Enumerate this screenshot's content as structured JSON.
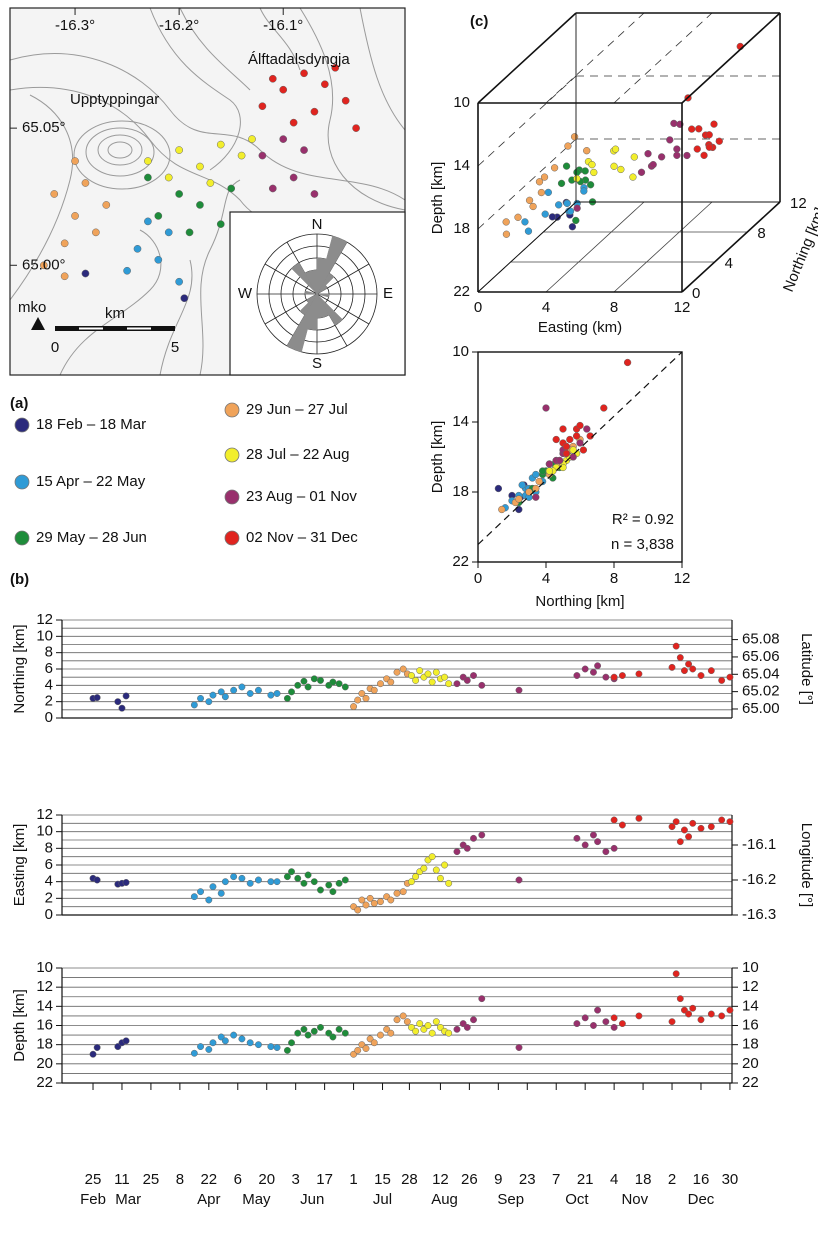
{
  "panel_labels": [
    "(a)",
    "(b)",
    "(c)"
  ],
  "chart_data": [
    {
      "type": "map",
      "xlim": [
        -16.3625,
        -15.983
      ],
      "ylim": [
        64.96,
        65.0938
      ],
      "xticks": [
        {
          "value": -16.3,
          "label": "-16.3°"
        },
        {
          "value": -16.2,
          "label": "-16.2°"
        },
        {
          "value": -16.1,
          "label": "-16.1°"
        }
      ],
      "yticks": [
        {
          "value": 65.0,
          "label": "65.00°"
        },
        {
          "value": 65.05,
          "label": "65.05°"
        }
      ],
      "place_labels": [
        "Álftadalsdyngja",
        "Upptyppingar"
      ],
      "station": "mko",
      "scale_bar": {
        "unit": "km",
        "ticks": [
          0,
          5
        ]
      },
      "rose": {
        "labels": [
          "N",
          "E",
          "S",
          "W"
        ],
        "rlim": [
          0,
          5
        ],
        "angles": [
          7.5,
          22.5,
          37.5,
          52.5,
          97.5,
          142.5,
          157.5,
          172.5,
          187.5,
          202.5,
          217.5,
          232.5,
          277.5,
          322.5,
          337.5,
          352.5
        ],
        "values": [
          3,
          5,
          2,
          1,
          1,
          3,
          2,
          2,
          3,
          5,
          2,
          1,
          1,
          3,
          2,
          2
        ]
      },
      "series": [
        {
          "name": "18 Feb – 18 Mar",
          "color": "#2b2a7c",
          "x": [
            -16.29,
            -16.195
          ],
          "y": [
            64.997,
            64.988
          ]
        },
        {
          "name": "15 Apr – 22 May",
          "color": "#2f9bd6",
          "x": [
            -16.25,
            -16.24,
            -16.22,
            -16.21,
            -16.23,
            -16.2
          ],
          "y": [
            64.998,
            65.006,
            65.002,
            65.012,
            65.016,
            64.994
          ]
        },
        {
          "name": "29 May – 28 Jun",
          "color": "#1e8c3a",
          "x": [
            -16.22,
            -16.2,
            -16.18,
            -16.16,
            -16.19,
            -16.15,
            -16.23
          ],
          "y": [
            65.018,
            65.026,
            65.022,
            65.015,
            65.012,
            65.028,
            65.032
          ]
        },
        {
          "name": "29 Jun – 27 Jul",
          "color": "#f0a35a",
          "x": [
            -16.33,
            -16.31,
            -16.3,
            -16.28,
            -16.32,
            -16.29,
            -16.27,
            -16.3,
            -16.31
          ],
          "y": [
            65.0,
            65.008,
            65.018,
            65.012,
            65.026,
            65.03,
            65.022,
            65.038,
            64.996
          ]
        },
        {
          "name": "28 Jul – 22 Aug",
          "color": "#f2ee2c",
          "x": [
            -16.23,
            -16.2,
            -16.18,
            -16.16,
            -16.14,
            -16.21,
            -16.17,
            -16.13
          ],
          "y": [
            65.038,
            65.042,
            65.036,
            65.044,
            65.04,
            65.032,
            65.03,
            65.046
          ]
        },
        {
          "name": "23 Aug – 01 Nov",
          "color": "#98306c",
          "x": [
            -16.12,
            -16.1,
            -16.09,
            -16.08,
            -16.11,
            -16.07
          ],
          "y": [
            65.04,
            65.046,
            65.032,
            65.042,
            65.028,
            65.026
          ]
        },
        {
          "name": "02 Nov – 31 Dec",
          "color": "#e0241f",
          "x": [
            -16.12,
            -16.1,
            -16.08,
            -16.06,
            -16.04,
            -16.09,
            -16.07,
            -16.05,
            -16.11,
            -16.03
          ],
          "y": [
            65.058,
            65.064,
            65.07,
            65.066,
            65.06,
            65.052,
            65.056,
            65.072,
            65.068,
            65.05
          ]
        }
      ]
    },
    {
      "type": "scatter3d",
      "xlabel": "Easting (km)",
      "ylabel": "Northing [km]",
      "zlabel": "Depth [km]",
      "xlim": [
        0,
        12
      ],
      "ylim": [
        0,
        12
      ],
      "zlim": [
        22,
        10
      ],
      "xticks": [
        0,
        4,
        8,
        12
      ],
      "yticks": [
        0,
        4,
        8,
        12
      ],
      "zticks": [
        10,
        14,
        18,
        22
      ]
    },
    {
      "type": "scatter",
      "xlabel": "Northing [km]",
      "ylabel": "Depth [km]",
      "xlim": [
        0,
        12
      ],
      "ylim": [
        22,
        10
      ],
      "xticks": [
        0,
        4,
        8,
        12
      ],
      "yticks": [
        10,
        14,
        18,
        22
      ],
      "annotations": [
        "R² = 0.92",
        "n = 3,838"
      ],
      "fit": {
        "x": [
          0,
          12
        ],
        "y": [
          21,
          10
        ]
      }
    },
    {
      "type": "timeseries",
      "xlim": [
        41,
        365
      ],
      "xticks": [
        {
          "value": 56,
          "label": "25"
        },
        {
          "value": 70,
          "label": "11"
        },
        {
          "value": 84,
          "label": "25"
        },
        {
          "value": 98,
          "label": "8"
        },
        {
          "value": 112,
          "label": "22"
        },
        {
          "value": 126,
          "label": "6"
        },
        {
          "value": 140,
          "label": "20"
        },
        {
          "value": 154,
          "label": "3"
        },
        {
          "value": 168,
          "label": "17"
        },
        {
          "value": 182,
          "label": "1"
        },
        {
          "value": 196,
          "label": "15"
        },
        {
          "value": 209,
          "label": "28"
        },
        {
          "value": 224,
          "label": "12"
        },
        {
          "value": 238,
          "label": "26"
        },
        {
          "value": 252,
          "label": "9"
        },
        {
          "value": 266,
          "label": "23"
        },
        {
          "value": 280,
          "label": "7"
        },
        {
          "value": 294,
          "label": "21"
        },
        {
          "value": 308,
          "label": "4"
        },
        {
          "value": 322,
          "label": "18"
        },
        {
          "value": 336,
          "label": "2"
        },
        {
          "value": 350,
          "label": "16"
        },
        {
          "value": 364,
          "label": "30"
        }
      ],
      "xmonths": [
        {
          "value": 56,
          "label": "Feb"
        },
        {
          "value": 73,
          "label": "Mar"
        },
        {
          "value": 112,
          "label": "Apr"
        },
        {
          "value": 135,
          "label": "May"
        },
        {
          "value": 162,
          "label": "Jun"
        },
        {
          "value": 196,
          "label": "Jul"
        },
        {
          "value": 226,
          "label": "Aug"
        },
        {
          "value": 258,
          "label": "Sep"
        },
        {
          "value": 290,
          "label": "Oct"
        },
        {
          "value": 318,
          "label": "Nov"
        },
        {
          "value": 350,
          "label": "Dec"
        }
      ],
      "panels": [
        {
          "key": "northing",
          "ylabel": "Northing [km]",
          "ylim": [
            0,
            12
          ],
          "yticks": [
            0,
            2,
            4,
            6,
            8,
            10,
            12
          ],
          "yminor": [
            1,
            3,
            5,
            7,
            9,
            11
          ],
          "y2label": "Latitude [°]",
          "y2lim": [
            64.9896,
            65.1026
          ],
          "y2ticks": [
            {
              "value": 65.0,
              "label": "65.00"
            },
            {
              "value": 65.02,
              "label": "65.02"
            },
            {
              "value": 65.04,
              "label": "65.04"
            },
            {
              "value": 65.06,
              "label": "65.06"
            },
            {
              "value": 65.08,
              "label": "65.08"
            }
          ]
        },
        {
          "key": "easting",
          "ylabel": "Easting [km]",
          "ylim": [
            0,
            12
          ],
          "yticks": [
            0,
            2,
            4,
            6,
            8,
            10,
            12
          ],
          "yminor": [
            1,
            3,
            5,
            7,
            9,
            11
          ],
          "y2label": "Longitude [°]",
          "y2lim": [
            -16.3,
            -16.0143
          ],
          "y2ticks": [
            -16.3,
            -16.2,
            -16.1
          ]
        },
        {
          "key": "depth",
          "ylabel": "Depth [km]",
          "ylim": [
            22,
            10
          ],
          "yticks": [
            10,
            12,
            14,
            16,
            18,
            20,
            22
          ],
          "yminor": [
            11,
            13,
            15,
            17,
            19,
            21
          ],
          "y2lim": [
            22,
            10
          ],
          "y2ticks": [
            10,
            12,
            14,
            16,
            18,
            20,
            22
          ]
        }
      ],
      "series": [
        {
          "x": [
            56,
            58,
            68,
            70,
            72
          ],
          "northing": [
            2.4,
            2.5,
            2.0,
            1.2,
            2.7
          ],
          "easting": [
            4.4,
            4.2,
            3.7,
            3.8,
            3.9
          ],
          "depth": [
            19.0,
            18.3,
            18.2,
            17.8,
            17.6
          ]
        },
        {
          "x": [
            105,
            108,
            112,
            114,
            118,
            120,
            124,
            128,
            132,
            136,
            142,
            145
          ],
          "northing": [
            1.6,
            2.4,
            2.0,
            2.8,
            3.2,
            2.6,
            3.4,
            3.8,
            3.0,
            3.4,
            2.8,
            3.0
          ],
          "easting": [
            2.2,
            2.8,
            1.8,
            3.4,
            2.6,
            4.0,
            4.6,
            4.4,
            3.8,
            4.2,
            4.0,
            4.0
          ],
          "depth": [
            18.9,
            18.2,
            18.5,
            17.8,
            17.2,
            17.6,
            17.0,
            17.4,
            17.8,
            18.0,
            18.2,
            18.3
          ]
        },
        {
          "x": [
            150,
            152,
            155,
            158,
            160,
            163,
            166,
            170,
            172,
            175,
            178
          ],
          "northing": [
            2.4,
            3.2,
            4.0,
            4.5,
            3.8,
            4.8,
            4.6,
            4.0,
            4.4,
            4.2,
            3.8
          ],
          "easting": [
            4.6,
            5.2,
            4.4,
            3.8,
            4.8,
            4.0,
            3.0,
            3.6,
            2.8,
            3.8,
            4.2
          ],
          "depth": [
            18.6,
            17.8,
            16.8,
            16.4,
            17.0,
            16.6,
            16.2,
            16.8,
            17.2,
            16.4,
            16.8
          ]
        },
        {
          "x": [
            182,
            184,
            186,
            188,
            190,
            192,
            195,
            198,
            200,
            203,
            206,
            208
          ],
          "northing": [
            1.4,
            2.2,
            3.0,
            2.4,
            3.6,
            3.4,
            4.2,
            4.8,
            4.4,
            5.6,
            6.0,
            5.4
          ],
          "easting": [
            1.0,
            0.6,
            1.8,
            1.2,
            2.0,
            1.4,
            1.6,
            2.2,
            1.8,
            2.6,
            2.8,
            3.8
          ],
          "depth": [
            19.0,
            18.6,
            18.0,
            18.4,
            17.4,
            17.8,
            17.0,
            16.4,
            16.8,
            15.4,
            15.0,
            15.6
          ]
        },
        {
          "x": [
            210,
            212,
            214,
            216,
            218,
            220,
            222,
            224,
            226,
            228
          ],
          "northing": [
            5.2,
            4.6,
            5.8,
            5.0,
            5.4,
            4.4,
            5.6,
            4.8,
            5.0,
            4.2
          ],
          "easting": [
            4.0,
            4.6,
            5.2,
            5.6,
            6.6,
            7.0,
            5.4,
            4.4,
            6.0,
            3.8
          ],
          "depth": [
            16.2,
            16.6,
            15.8,
            16.4,
            16.0,
            16.8,
            15.6,
            16.2,
            16.6,
            16.8
          ]
        },
        {
          "x": [
            232,
            235,
            237,
            240,
            244,
            262,
            290,
            294,
            298,
            300,
            304,
            308
          ],
          "northing": [
            4.2,
            5.0,
            4.6,
            5.2,
            4.0,
            3.4,
            5.2,
            6.0,
            5.6,
            6.4,
            5.0,
            4.8
          ],
          "easting": [
            7.6,
            8.4,
            8.0,
            9.2,
            9.6,
            4.2,
            9.2,
            8.4,
            9.6,
            8.8,
            7.6,
            8.0
          ],
          "depth": [
            16.4,
            15.8,
            16.2,
            15.4,
            13.2,
            18.3,
            15.8,
            15.2,
            16.0,
            14.4,
            15.6,
            16.2
          ]
        },
        {
          "x": [
            308,
            312,
            320,
            336,
            338,
            340,
            342,
            344,
            346,
            350,
            355,
            360,
            364
          ],
          "northing": [
            5.0,
            5.2,
            5.4,
            6.2,
            8.8,
            7.4,
            5.8,
            6.6,
            6.0,
            5.2,
            5.8,
            4.6,
            5.0
          ],
          "easting": [
            11.4,
            10.8,
            11.6,
            10.6,
            11.2,
            8.8,
            10.2,
            9.4,
            11.0,
            10.4,
            10.6,
            11.4,
            11.2
          ],
          "depth": [
            15.2,
            15.8,
            15.0,
            15.6,
            10.6,
            13.2,
            14.4,
            14.8,
            14.2,
            15.4,
            14.8,
            15.0,
            14.4
          ]
        }
      ]
    }
  ]
}
